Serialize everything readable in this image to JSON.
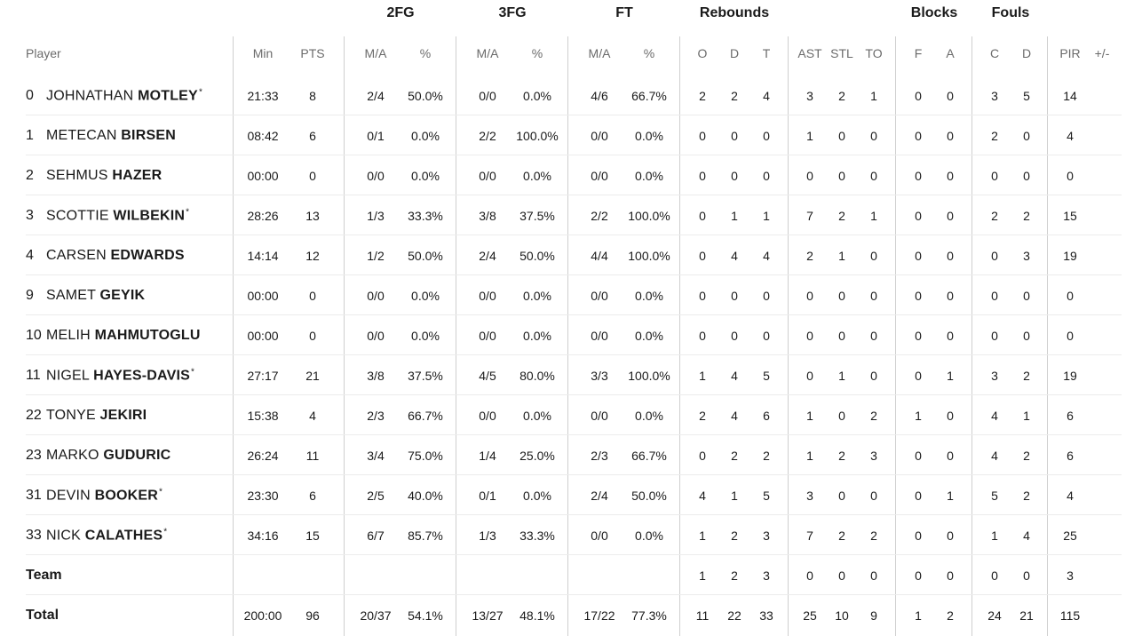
{
  "groups": [
    {
      "key": "fg2",
      "label": "2FG"
    },
    {
      "key": "fg3",
      "label": "3FG"
    },
    {
      "key": "ft",
      "label": "FT"
    },
    {
      "key": "reb",
      "label": "Rebounds"
    },
    {
      "key": "blk",
      "label": "Blocks"
    },
    {
      "key": "fls",
      "label": "Fouls"
    }
  ],
  "headers": {
    "player": "Player",
    "cols": [
      "Min",
      "PTS",
      "M/A",
      "%",
      "M/A",
      "%",
      "M/A",
      "%",
      "O",
      "D",
      "T",
      "AST",
      "STL",
      "TO",
      "F",
      "A",
      "C",
      "D",
      "PIR",
      "+/-"
    ]
  },
  "players": [
    {
      "num": "0",
      "first": "JOHNATHAN",
      "last": "MOTLEY",
      "starter": true,
      "stats": [
        "21:33",
        "8",
        "2/4",
        "50.0%",
        "0/0",
        "0.0%",
        "4/6",
        "66.7%",
        "2",
        "2",
        "4",
        "3",
        "2",
        "1",
        "0",
        "0",
        "3",
        "5",
        "14",
        ""
      ]
    },
    {
      "num": "1",
      "first": "METECAN",
      "last": "BIRSEN",
      "starter": false,
      "stats": [
        "08:42",
        "6",
        "0/1",
        "0.0%",
        "2/2",
        "100.0%",
        "0/0",
        "0.0%",
        "0",
        "0",
        "0",
        "1",
        "0",
        "0",
        "0",
        "0",
        "2",
        "0",
        "4",
        ""
      ]
    },
    {
      "num": "2",
      "first": "SEHMUS",
      "last": "HAZER",
      "starter": false,
      "stats": [
        "00:00",
        "0",
        "0/0",
        "0.0%",
        "0/0",
        "0.0%",
        "0/0",
        "0.0%",
        "0",
        "0",
        "0",
        "0",
        "0",
        "0",
        "0",
        "0",
        "0",
        "0",
        "0",
        ""
      ]
    },
    {
      "num": "3",
      "first": "SCOTTIE",
      "last": "WILBEKIN",
      "starter": true,
      "stats": [
        "28:26",
        "13",
        "1/3",
        "33.3%",
        "3/8",
        "37.5%",
        "2/2",
        "100.0%",
        "0",
        "1",
        "1",
        "7",
        "2",
        "1",
        "0",
        "0",
        "2",
        "2",
        "15",
        ""
      ]
    },
    {
      "num": "4",
      "first": "CARSEN",
      "last": "EDWARDS",
      "starter": false,
      "stats": [
        "14:14",
        "12",
        "1/2",
        "50.0%",
        "2/4",
        "50.0%",
        "4/4",
        "100.0%",
        "0",
        "4",
        "4",
        "2",
        "1",
        "0",
        "0",
        "0",
        "0",
        "3",
        "19",
        ""
      ]
    },
    {
      "num": "9",
      "first": "SAMET",
      "last": "GEYIK",
      "starter": false,
      "stats": [
        "00:00",
        "0",
        "0/0",
        "0.0%",
        "0/0",
        "0.0%",
        "0/0",
        "0.0%",
        "0",
        "0",
        "0",
        "0",
        "0",
        "0",
        "0",
        "0",
        "0",
        "0",
        "0",
        ""
      ]
    },
    {
      "num": "10",
      "first": "MELIH",
      "last": "MAHMUTOGLU",
      "starter": false,
      "stats": [
        "00:00",
        "0",
        "0/0",
        "0.0%",
        "0/0",
        "0.0%",
        "0/0",
        "0.0%",
        "0",
        "0",
        "0",
        "0",
        "0",
        "0",
        "0",
        "0",
        "0",
        "0",
        "0",
        ""
      ]
    },
    {
      "num": "11",
      "first": "NIGEL",
      "last": "HAYES-DAVIS",
      "starter": true,
      "stats": [
        "27:17",
        "21",
        "3/8",
        "37.5%",
        "4/5",
        "80.0%",
        "3/3",
        "100.0%",
        "1",
        "4",
        "5",
        "0",
        "1",
        "0",
        "0",
        "1",
        "3",
        "2",
        "19",
        ""
      ]
    },
    {
      "num": "22",
      "first": "TONYE",
      "last": "JEKIRI",
      "starter": false,
      "stats": [
        "15:38",
        "4",
        "2/3",
        "66.7%",
        "0/0",
        "0.0%",
        "0/0",
        "0.0%",
        "2",
        "4",
        "6",
        "1",
        "0",
        "2",
        "1",
        "0",
        "4",
        "1",
        "6",
        ""
      ]
    },
    {
      "num": "23",
      "first": "MARKO",
      "last": "GUDURIC",
      "starter": false,
      "stats": [
        "26:24",
        "11",
        "3/4",
        "75.0%",
        "1/4",
        "25.0%",
        "2/3",
        "66.7%",
        "0",
        "2",
        "2",
        "1",
        "2",
        "3",
        "0",
        "0",
        "4",
        "2",
        "6",
        ""
      ]
    },
    {
      "num": "31",
      "first": "DEVIN",
      "last": "BOOKER",
      "starter": true,
      "stats": [
        "23:30",
        "6",
        "2/5",
        "40.0%",
        "0/1",
        "0.0%",
        "2/4",
        "50.0%",
        "4",
        "1",
        "5",
        "3",
        "0",
        "0",
        "0",
        "1",
        "5",
        "2",
        "4",
        ""
      ]
    },
    {
      "num": "33",
      "first": "NICK",
      "last": "CALATHES",
      "starter": true,
      "stats": [
        "34:16",
        "15",
        "6/7",
        "85.7%",
        "1/3",
        "33.3%",
        "0/0",
        "0.0%",
        "1",
        "2",
        "3",
        "7",
        "2",
        "2",
        "0",
        "0",
        "1",
        "4",
        "25",
        ""
      ]
    }
  ],
  "team": {
    "label": "Team",
    "stats": [
      "",
      "",
      "",
      "",
      "",
      "",
      "",
      "",
      "1",
      "2",
      "3",
      "0",
      "0",
      "0",
      "0",
      "0",
      "0",
      "0",
      "3",
      ""
    ]
  },
  "total": {
    "label": "Total",
    "stats": [
      "200:00",
      "96",
      "20/37",
      "54.1%",
      "13/27",
      "48.1%",
      "17/22",
      "77.3%",
      "11",
      "22",
      "33",
      "25",
      "10",
      "9",
      "1",
      "2",
      "24",
      "21",
      "115",
      ""
    ]
  },
  "starter_mark": "*"
}
